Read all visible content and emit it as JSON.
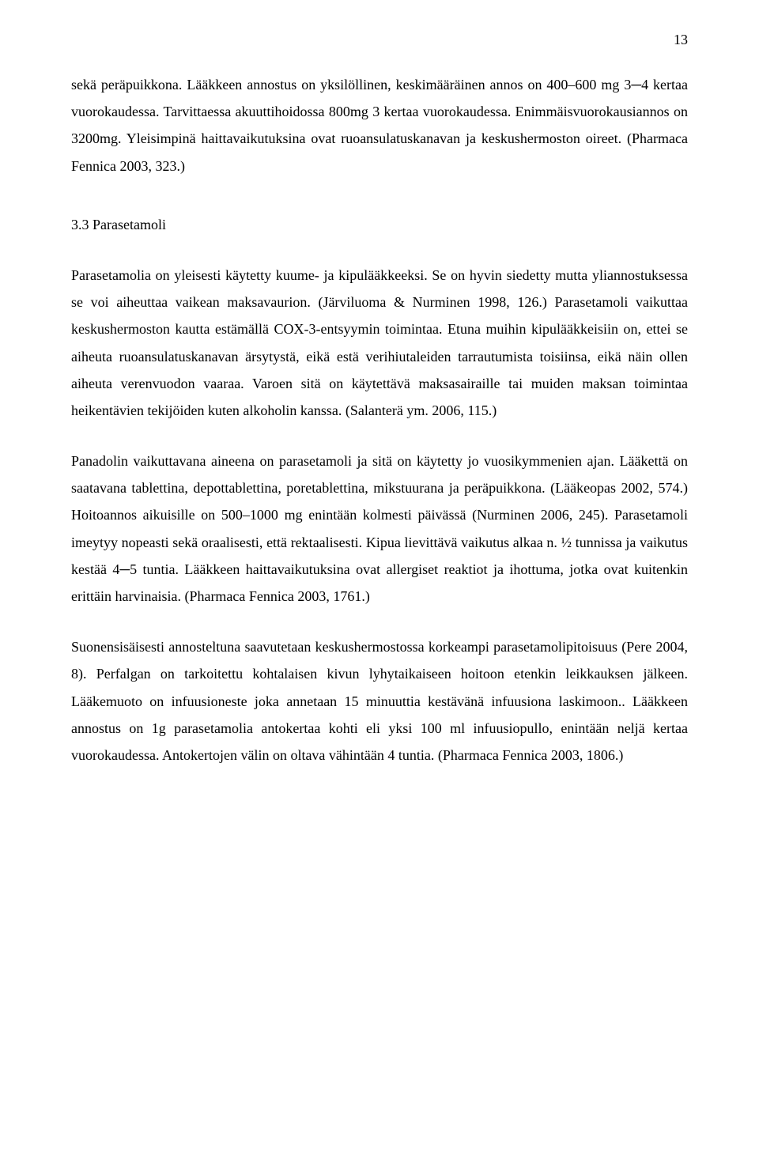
{
  "pageNumber": "13",
  "blocks": {
    "p1": "sekä peräpuikkona. Lääkkeen annostus on yksilöllinen, keskimääräinen annos on 400–600 mg 3─4 kertaa vuorokaudessa. Tarvittaessa akuuttihoidossa 800mg 3 kertaa vuorokaudessa. Enimmäisvuorokausiannos on 3200mg. Yleisimpinä haittavaikutuksina ovat ruoansulatuskanavan ja keskushermoston oireet. (Pharmaca Fennica 2003, 323.)",
    "h1": "3.3  Parasetamoli",
    "p2": "Parasetamolia on yleisesti käytetty kuume- ja kipulääkkeeksi. Se on hyvin siedetty mutta yliannostuksessa se voi aiheuttaa vaikean maksavaurion. (Järviluoma & Nurminen 1998, 126.) Parasetamoli vaikuttaa keskushermoston kautta estämällä COX-3-entsyymin toimintaa. Etuna muihin kipulääkkeisiin on, ettei se aiheuta ruoansulatuskanavan ärsytystä, eikä estä verihiutaleiden tarrautumista toisiinsa, eikä näin ollen aiheuta verenvuodon vaaraa. Varoen sitä on käytettävä maksasairaille tai muiden maksan toimintaa heikentävien tekijöiden kuten alkoholin kanssa. (Salanterä ym. 2006, 115.)",
    "p3": "Panadolin vaikuttavana aineena on parasetamoli ja sitä on käytetty jo vuosikymmenien ajan. Lääkettä on saatavana tablettina, depottablettina, poretablettina, mikstuurana ja peräpuikkona. (Lääkeopas 2002, 574.) Hoitoannos aikuisille on 500–1000 mg enintään kolmesti päivässä (Nurminen 2006, 245). Parasetamoli imeytyy nopeasti sekä oraalisesti, että rektaalisesti. Kipua lievittävä vaikutus alkaa n. ½ tunnissa ja vaikutus kestää 4─5 tuntia. Lääkkeen haittavaikutuksina ovat allergiset reaktiot ja ihottuma, jotka ovat kuitenkin erittäin harvinaisia. (Pharmaca Fennica 2003, 1761.)",
    "p4": "Suonensisäisesti annosteltuna saavutetaan keskushermostossa korkeampi parasetamolipitoisuus (Pere 2004, 8). Perfalgan on tarkoitettu kohtalaisen kivun lyhytaikaiseen hoitoon etenkin leikkauksen jälkeen. Lääkemuoto on infuusioneste joka annetaan 15 minuuttia kestävänä infuusiona laskimoon.. Lääkkeen annostus on 1g parasetamolia antokertaa kohti eli yksi 100 ml infuusiopullo, enintään neljä kertaa vuorokaudessa. Antokertojen välin on oltava vähintään 4 tuntia. (Pharmaca Fennica 2003, 1806.)"
  },
  "style": {
    "fontFamily": "Times New Roman",
    "fontSizePt": 12,
    "lineHeight": 1.9,
    "textColor": "#000000",
    "backgroundColor": "#ffffff",
    "pageWidth": 960,
    "pageHeight": 1462,
    "textAlign": "justify"
  }
}
